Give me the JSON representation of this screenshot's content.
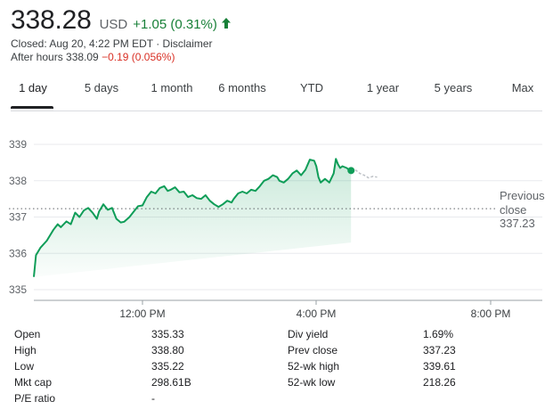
{
  "quote": {
    "price": "338.28",
    "currency": "USD",
    "change": "+1.05 (0.31%)",
    "direction": "up",
    "up_color": "#188038",
    "closed_text": "Closed: Aug 20, 4:22 PM EDT",
    "separator": " · ",
    "disclaimer": "Disclaimer",
    "after_hours_label": "After hours 338.09",
    "after_hours_change": "−0.19 (0.056%)",
    "down_color": "#d93025"
  },
  "tabs": [
    {
      "label": "1 day",
      "active": true
    },
    {
      "label": "5 days",
      "active": false
    },
    {
      "label": "1 month",
      "active": false
    },
    {
      "label": "6 months",
      "active": false
    },
    {
      "label": "YTD",
      "active": false
    },
    {
      "label": "1 year",
      "active": false
    },
    {
      "label": "5 years",
      "active": false
    },
    {
      "label": "Max",
      "active": false
    }
  ],
  "chart_data": {
    "type": "line",
    "y_ticks": [
      "339",
      "338",
      "337",
      "336",
      "335"
    ],
    "ylim": [
      335,
      339.5
    ],
    "x_ticks": [
      "12:00 PM",
      "4:00 PM",
      "8:00 PM"
    ],
    "previous_close": 337.23,
    "previous_close_label_1": "Previous",
    "previous_close_label_2": "close",
    "previous_close_value": "337.23",
    "line_color": "#0f9d58",
    "after_hours_color": "#bdc1c6",
    "x_unit": "hours since 9:30 AM",
    "series": [
      {
        "name": "regular",
        "points": [
          [
            0.0,
            335.35
          ],
          [
            0.05,
            335.95
          ],
          [
            0.15,
            336.15
          ],
          [
            0.3,
            336.35
          ],
          [
            0.45,
            336.65
          ],
          [
            0.55,
            336.8
          ],
          [
            0.62,
            336.72
          ],
          [
            0.75,
            336.88
          ],
          [
            0.85,
            336.8
          ],
          [
            0.95,
            337.12
          ],
          [
            1.05,
            337.0
          ],
          [
            1.15,
            337.18
          ],
          [
            1.25,
            337.25
          ],
          [
            1.35,
            337.12
          ],
          [
            1.45,
            336.95
          ],
          [
            1.5,
            337.15
          ],
          [
            1.6,
            337.35
          ],
          [
            1.7,
            337.2
          ],
          [
            1.8,
            337.25
          ],
          [
            1.9,
            336.95
          ],
          [
            2.0,
            336.85
          ],
          [
            2.08,
            336.87
          ],
          [
            2.2,
            337.0
          ],
          [
            2.3,
            337.15
          ],
          [
            2.4,
            337.3
          ],
          [
            2.5,
            337.32
          ],
          [
            2.6,
            337.55
          ],
          [
            2.7,
            337.7
          ],
          [
            2.8,
            337.65
          ],
          [
            2.9,
            337.8
          ],
          [
            3.0,
            337.85
          ],
          [
            3.08,
            337.72
          ],
          [
            3.15,
            337.75
          ],
          [
            3.25,
            337.82
          ],
          [
            3.35,
            337.68
          ],
          [
            3.45,
            337.7
          ],
          [
            3.55,
            337.55
          ],
          [
            3.65,
            337.6
          ],
          [
            3.75,
            337.52
          ],
          [
            3.85,
            337.5
          ],
          [
            3.95,
            337.6
          ],
          [
            4.05,
            337.45
          ],
          [
            4.15,
            337.35
          ],
          [
            4.25,
            337.28
          ],
          [
            4.35,
            337.35
          ],
          [
            4.45,
            337.45
          ],
          [
            4.55,
            337.4
          ],
          [
            4.6,
            337.5
          ],
          [
            4.7,
            337.65
          ],
          [
            4.8,
            337.7
          ],
          [
            4.9,
            337.65
          ],
          [
            5.0,
            337.75
          ],
          [
            5.1,
            337.72
          ],
          [
            5.2,
            337.85
          ],
          [
            5.3,
            338.0
          ],
          [
            5.4,
            338.05
          ],
          [
            5.5,
            338.15
          ],
          [
            5.6,
            338.1
          ],
          [
            5.65,
            338.0
          ],
          [
            5.75,
            337.95
          ],
          [
            5.85,
            338.05
          ],
          [
            5.95,
            338.2
          ],
          [
            6.05,
            338.28
          ],
          [
            6.15,
            338.15
          ],
          [
            6.25,
            338.3
          ],
          [
            6.35,
            338.58
          ],
          [
            6.45,
            338.55
          ],
          [
            6.5,
            338.4
          ],
          [
            6.55,
            338.1
          ],
          [
            6.6,
            337.95
          ],
          [
            6.7,
            338.05
          ],
          [
            6.8,
            337.95
          ],
          [
            6.9,
            338.2
          ],
          [
            6.95,
            338.6
          ],
          [
            7.0,
            338.45
          ],
          [
            7.05,
            338.35
          ],
          [
            7.1,
            338.4
          ],
          [
            7.2,
            338.35
          ],
          [
            7.25,
            338.3
          ],
          [
            7.3,
            338.28
          ]
        ]
      },
      {
        "name": "after_hours",
        "points": [
          [
            7.3,
            338.28
          ],
          [
            7.4,
            338.3
          ],
          [
            7.5,
            338.2
          ],
          [
            7.6,
            338.15
          ],
          [
            7.7,
            338.08
          ],
          [
            7.8,
            338.12
          ],
          [
            7.9,
            338.1
          ]
        ]
      }
    ]
  },
  "stats": {
    "rows": [
      {
        "l1": "Open",
        "v1": "335.33",
        "l2": "Div yield",
        "v2": "1.69%"
      },
      {
        "l1": "High",
        "v1": "338.80",
        "l2": "Prev close",
        "v2": "337.23"
      },
      {
        "l1": "Low",
        "v1": "335.22",
        "l2": "52-wk high",
        "v2": "339.61"
      },
      {
        "l1": "Mkt cap",
        "v1": "298.61B",
        "l2": "52-wk low",
        "v2": "218.26"
      },
      {
        "l1": "P/E ratio",
        "v1": "-",
        "l2": "",
        "v2": ""
      }
    ]
  }
}
